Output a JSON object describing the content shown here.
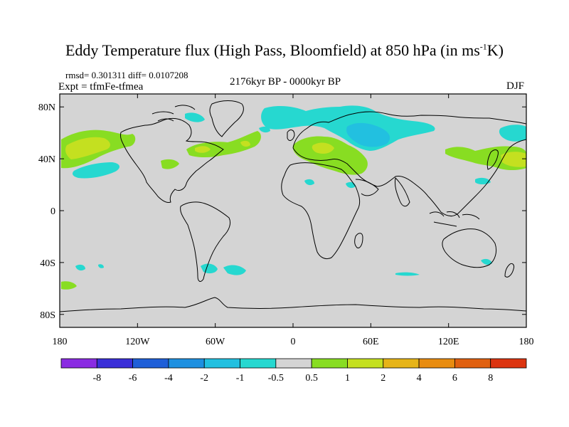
{
  "title": {
    "main": "Eddy Temperature flux (High Pass, Bloomfield) at 850 hPa (in ms",
    "sup": "-1",
    "end": "K)"
  },
  "stats": "rmsd= 0.301311 diff= 0.0107208",
  "experiment": "Expt = tfmFe-tfmea",
  "period": "2176kyr BP - 0000kyr BP",
  "season": "DJF",
  "axes": {
    "lon_ticks": [
      "180",
      "120W",
      "60W",
      "0",
      "60E",
      "120E",
      "180"
    ],
    "lon_values": [
      -180,
      -120,
      -60,
      0,
      60,
      120,
      180
    ],
    "lat_ticks": [
      "80N",
      "40N",
      "0",
      "40S",
      "80S"
    ],
    "lat_values": [
      80,
      40,
      0,
      -40,
      -80
    ]
  },
  "colorbar": {
    "labels": [
      "-8",
      "-6",
      "-4",
      "-2",
      "-1",
      "-0.5",
      "0.5",
      "1",
      "2",
      "4",
      "6",
      "8"
    ],
    "colors": [
      "#8a2be2",
      "#3a2ed8",
      "#1f5fd8",
      "#1e90e0",
      "#22c0e0",
      "#26d8d0",
      "#d4d4d4",
      "#88dd22",
      "#c4e020",
      "#e6b418",
      "#e88c10",
      "#e06010",
      "#dc3410"
    ]
  },
  "colors": {
    "background": "#d4d4d4",
    "cyan": "#26d8d0",
    "light_cyan": "#22c0e0",
    "green": "#88dd22",
    "yellow_green": "#c4e020",
    "orange": "#e6b418"
  }
}
